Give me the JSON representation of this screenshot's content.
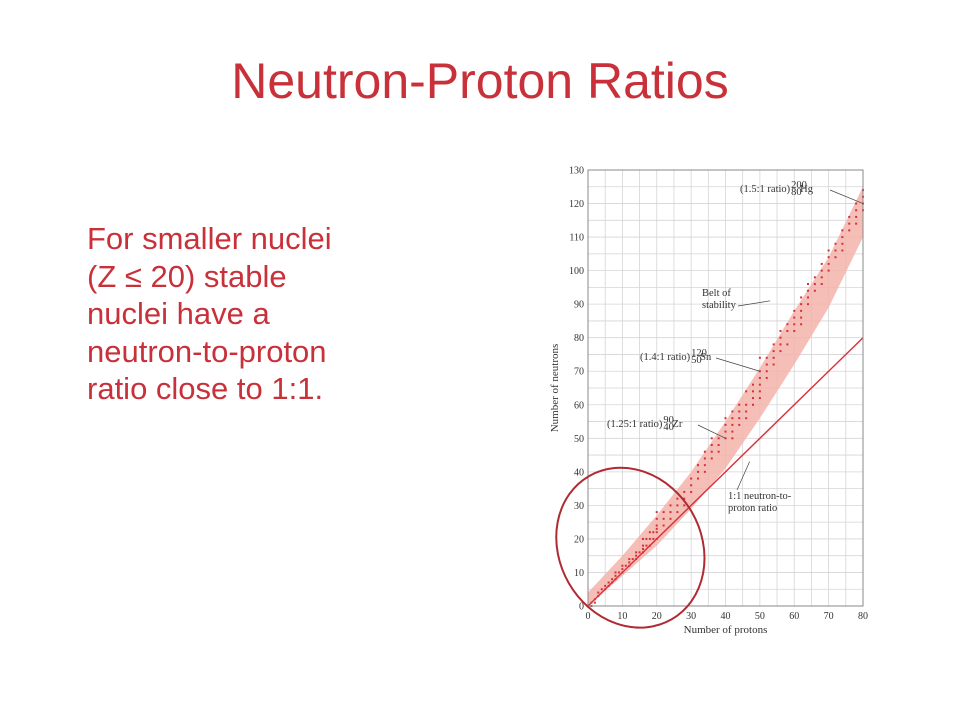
{
  "slide": {
    "title": "Neutron-Proton Ratios",
    "body_lines": [
      "For smaller nuclei",
      "(Z ≤ 20) stable",
      "nuclei have a",
      "neutron-to-proton",
      "ratio close to 1:1."
    ]
  },
  "colors": {
    "title": "#c8313a",
    "belt": "#f3b3aa",
    "points": "#d8303a",
    "ratio_line": "#d8303a",
    "highlight_circle": "#b02a32",
    "grid": "#d5d5d5"
  },
  "chart_data": {
    "type": "scatter",
    "xlabel": "Number of protons",
    "ylabel": "Number of neutrons",
    "xlim": [
      0,
      80
    ],
    "ylim": [
      0,
      130
    ],
    "xticks": [
      0,
      10,
      20,
      30,
      40,
      50,
      60,
      70,
      80
    ],
    "yticks": [
      0,
      10,
      20,
      30,
      40,
      50,
      60,
      70,
      80,
      90,
      100,
      110,
      120,
      130
    ],
    "grid": true,
    "belt_of_stability": {
      "z": [
        0,
        10,
        20,
        30,
        40,
        50,
        60,
        70,
        80
      ],
      "n_low": [
        0,
        9,
        18,
        29,
        41,
        56,
        72,
        89,
        110
      ],
      "n_high": [
        4,
        15,
        27,
        40,
        55,
        71,
        88,
        104,
        125
      ]
    },
    "ratio_line_1_1": {
      "x": [
        0,
        80
      ],
      "y": [
        0,
        80
      ]
    },
    "stable_nuclei": [
      [
        1,
        0
      ],
      [
        1,
        1
      ],
      [
        2,
        1
      ],
      [
        2,
        2
      ],
      [
        3,
        3
      ],
      [
        3,
        4
      ],
      [
        4,
        5
      ],
      [
        5,
        5
      ],
      [
        5,
        6
      ],
      [
        6,
        6
      ],
      [
        6,
        7
      ],
      [
        7,
        7
      ],
      [
        7,
        8
      ],
      [
        8,
        8
      ],
      [
        8,
        9
      ],
      [
        8,
        10
      ],
      [
        9,
        10
      ],
      [
        10,
        10
      ],
      [
        10,
        11
      ],
      [
        10,
        12
      ],
      [
        11,
        12
      ],
      [
        12,
        12
      ],
      [
        12,
        13
      ],
      [
        12,
        14
      ],
      [
        13,
        14
      ],
      [
        14,
        14
      ],
      [
        14,
        15
      ],
      [
        14,
        16
      ],
      [
        15,
        16
      ],
      [
        16,
        16
      ],
      [
        16,
        17
      ],
      [
        16,
        18
      ],
      [
        16,
        20
      ],
      [
        17,
        18
      ],
      [
        17,
        20
      ],
      [
        18,
        18
      ],
      [
        18,
        20
      ],
      [
        18,
        22
      ],
      [
        19,
        20
      ],
      [
        19,
        22
      ],
      [
        20,
        20
      ],
      [
        20,
        22
      ],
      [
        20,
        23
      ],
      [
        20,
        24
      ],
      [
        20,
        26
      ],
      [
        20,
        28
      ],
      [
        22,
        24
      ],
      [
        22,
        26
      ],
      [
        22,
        28
      ],
      [
        24,
        26
      ],
      [
        24,
        28
      ],
      [
        24,
        30
      ],
      [
        26,
        28
      ],
      [
        26,
        30
      ],
      [
        26,
        32
      ],
      [
        28,
        30
      ],
      [
        28,
        32
      ],
      [
        28,
        34
      ],
      [
        30,
        34
      ],
      [
        30,
        36
      ],
      [
        30,
        38
      ],
      [
        32,
        38
      ],
      [
        32,
        40
      ],
      [
        32,
        42
      ],
      [
        34,
        40
      ],
      [
        34,
        42
      ],
      [
        34,
        44
      ],
      [
        34,
        46
      ],
      [
        36,
        44
      ],
      [
        36,
        46
      ],
      [
        36,
        48
      ],
      [
        36,
        50
      ],
      [
        38,
        46
      ],
      [
        38,
        48
      ],
      [
        38,
        50
      ],
      [
        40,
        50
      ],
      [
        40,
        52
      ],
      [
        40,
        54
      ],
      [
        40,
        56
      ],
      [
        42,
        50
      ],
      [
        42,
        52
      ],
      [
        42,
        54
      ],
      [
        42,
        56
      ],
      [
        42,
        58
      ],
      [
        44,
        54
      ],
      [
        44,
        56
      ],
      [
        44,
        58
      ],
      [
        44,
        60
      ],
      [
        46,
        56
      ],
      [
        46,
        58
      ],
      [
        46,
        60
      ],
      [
        46,
        64
      ],
      [
        48,
        60
      ],
      [
        48,
        62
      ],
      [
        48,
        64
      ],
      [
        48,
        66
      ],
      [
        50,
        62
      ],
      [
        50,
        64
      ],
      [
        50,
        66
      ],
      [
        50,
        68
      ],
      [
        50,
        70
      ],
      [
        50,
        74
      ],
      [
        52,
        68
      ],
      [
        52,
        70
      ],
      [
        52,
        72
      ],
      [
        52,
        74
      ],
      [
        54,
        72
      ],
      [
        54,
        74
      ],
      [
        54,
        76
      ],
      [
        54,
        78
      ],
      [
        56,
        76
      ],
      [
        56,
        78
      ],
      [
        56,
        80
      ],
      [
        56,
        82
      ],
      [
        58,
        78
      ],
      [
        58,
        82
      ],
      [
        58,
        84
      ],
      [
        60,
        82
      ],
      [
        60,
        84
      ],
      [
        60,
        86
      ],
      [
        60,
        88
      ],
      [
        62,
        84
      ],
      [
        62,
        86
      ],
      [
        62,
        88
      ],
      [
        62,
        90
      ],
      [
        62,
        92
      ],
      [
        64,
        90
      ],
      [
        64,
        92
      ],
      [
        64,
        94
      ],
      [
        64,
        96
      ],
      [
        66,
        94
      ],
      [
        66,
        96
      ],
      [
        66,
        98
      ],
      [
        68,
        96
      ],
      [
        68,
        98
      ],
      [
        68,
        100
      ],
      [
        68,
        102
      ],
      [
        70,
        100
      ],
      [
        70,
        102
      ],
      [
        70,
        104
      ],
      [
        70,
        106
      ],
      [
        72,
        104
      ],
      [
        72,
        106
      ],
      [
        72,
        108
      ],
      [
        74,
        106
      ],
      [
        74,
        108
      ],
      [
        74,
        110
      ],
      [
        74,
        112
      ],
      [
        76,
        112
      ],
      [
        76,
        114
      ],
      [
        76,
        116
      ],
      [
        78,
        114
      ],
      [
        78,
        116
      ],
      [
        78,
        118
      ],
      [
        78,
        120
      ],
      [
        80,
        118
      ],
      [
        80,
        120
      ],
      [
        80,
        122
      ],
      [
        80,
        124
      ]
    ],
    "annotations": [
      {
        "text": "(1.5:1 ratio)",
        "nuclide": "Hg",
        "mass": "200",
        "atomic": "80",
        "at": [
          80,
          120
        ]
      },
      {
        "text": "Belt of",
        "text2": "stability",
        "at": [
          53,
          91
        ]
      },
      {
        "text": "(1.4:1 ratio)",
        "nuclide": "Sn",
        "mass": "120",
        "atomic": "50",
        "at": [
          50,
          70
        ]
      },
      {
        "text": "(1.25:1 ratio)",
        "nuclide": "Zr",
        "mass": "90",
        "atomic": "40",
        "at": [
          40,
          50
        ]
      },
      {
        "text": "1:1 neutron-to-",
        "text2": "proton ratio",
        "at": [
          47,
          43
        ]
      }
    ],
    "highlight": {
      "description": "circle around region Z ≤ 20",
      "center": [
        10,
        15
      ],
      "radius_x": 14,
      "radius_y": 17
    }
  }
}
